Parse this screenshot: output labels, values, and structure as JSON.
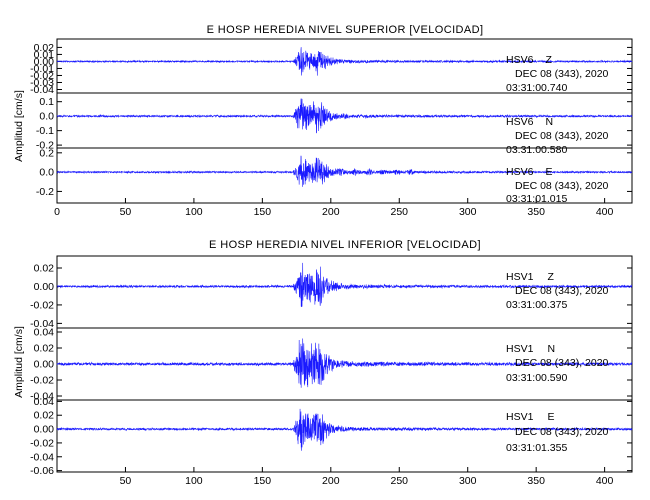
{
  "chart_data": [
    {
      "type": "line",
      "title": "E HOSP HEREDIA NIVEL SUPERIOR [VELOCIDAD]",
      "ylabel": "Amplitud [cm/s]",
      "xlim": [
        0,
        420
      ],
      "x_ticks": [
        0,
        50,
        100,
        150,
        200,
        250,
        300,
        350,
        400
      ],
      "line_color": "#1a1aff",
      "panels": [
        {
          "station": "HSV6",
          "component": "Z",
          "date": "DEC 08 (343), 2020",
          "time": "03:31:00.740",
          "ylim": [
            -0.045,
            0.032
          ],
          "y_ticks": [
            0.02,
            0.01,
            0.0,
            -0.01,
            -0.02,
            -0.03,
            -0.04
          ],
          "y_tick_labels": [
            "0.02",
            "0.01",
            "0.00",
            "-0.01",
            "-0.02",
            "-0.03",
            "-0.04"
          ],
          "peak_amplitude": 0.025,
          "arrival_time_s": 175,
          "peak_time_s": 178
        },
        {
          "station": "HSV6",
          "component": "N",
          "date": "DEC 08 (343), 2020",
          "time": "03:31:00.580",
          "ylim": [
            -0.22,
            0.16
          ],
          "y_ticks": [
            0.1,
            0.0,
            -0.1,
            -0.2
          ],
          "y_tick_labels": [
            "0.1",
            "0.0",
            "-0.1",
            "-0.2"
          ],
          "peak_amplitude": 0.15,
          "arrival_time_s": 175,
          "peak_time_s": 178
        },
        {
          "station": "HSV6",
          "component": "E",
          "date": "DEC 08 (343), 2020",
          "time": "03:31:01.015",
          "ylim": [
            -0.32,
            0.25
          ],
          "y_ticks": [
            0.2,
            0.0,
            -0.2
          ],
          "y_tick_labels": [
            "0.2",
            "0.0",
            "-0.2"
          ],
          "peak_amplitude": 0.2,
          "arrival_time_s": 175,
          "peak_time_s": 178
        }
      ]
    },
    {
      "type": "line",
      "title": "E HOSP HEREDIA NIVEL INFERIOR [VELOCIDAD]",
      "ylabel": "Amplitud [cm/s]",
      "xlim": [
        0,
        420
      ],
      "x_ticks": [
        50,
        100,
        150,
        200,
        250,
        300,
        350,
        400
      ],
      "line_color": "#1a1aff",
      "panels": [
        {
          "station": "HSV1",
          "component": "Z",
          "date": "DEC 08 (343), 2020",
          "time": "03:31:00.375",
          "ylim": [
            -0.045,
            0.033
          ],
          "y_ticks": [
            0.02,
            0.0,
            -0.02,
            -0.04
          ],
          "y_tick_labels": [
            "0.02",
            "0.00",
            "-0.02",
            "-0.04"
          ],
          "peak_amplitude": 0.028,
          "arrival_time_s": 175,
          "peak_time_s": 178
        },
        {
          "station": "HSV1",
          "component": "N",
          "date": "DEC 08 (343), 2020",
          "time": "03:31:00.590",
          "ylim": [
            -0.045,
            0.045
          ],
          "y_ticks": [
            0.04,
            0.02,
            0.0,
            -0.02,
            -0.04
          ],
          "y_tick_labels": [
            "0.04",
            "0.02",
            "0.00",
            "-0.02",
            "-0.04"
          ],
          "peak_amplitude": 0.04,
          "arrival_time_s": 175,
          "peak_time_s": 178
        },
        {
          "station": "HSV1",
          "component": "E",
          "date": "DEC 08 (343), 2020",
          "time": "03:31:01.355",
          "ylim": [
            -0.062,
            0.042
          ],
          "y_ticks": [
            0.04,
            0.02,
            0.0,
            -0.02,
            -0.04,
            -0.06
          ],
          "y_tick_labels": [
            "0.04",
            "0.02",
            "0.00",
            "-0.02",
            "-0.04",
            "-0.06"
          ],
          "peak_amplitude": 0.035,
          "arrival_time_s": 175,
          "peak_time_s": 178
        }
      ]
    }
  ]
}
